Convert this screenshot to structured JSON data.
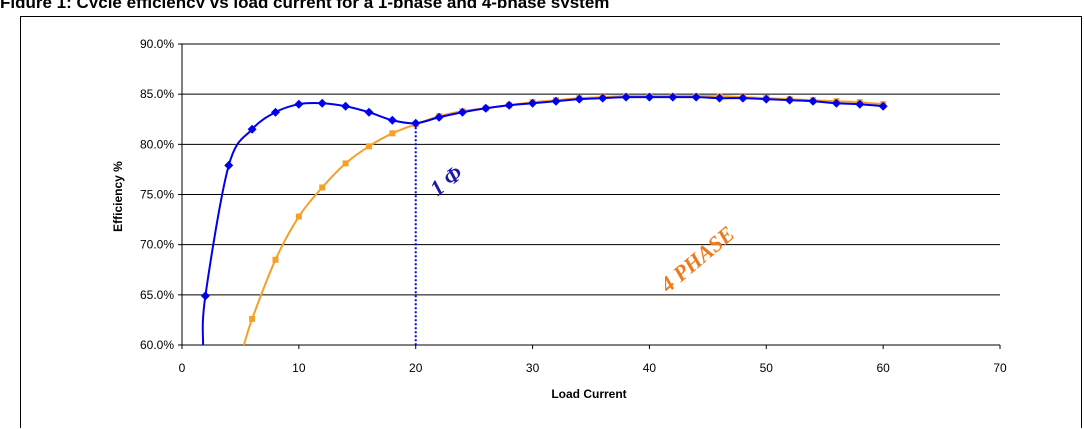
{
  "page": {
    "header": "Figure 1: Cycle efficiency vs load current for a 1-phase and 4-phase system"
  },
  "chart_data": {
    "type": "line",
    "xlabel": "Load Current",
    "ylabel": "Efficiency %",
    "xlim": [
      0,
      70
    ],
    "ylim": [
      0.6,
      0.9
    ],
    "x_ticks": [
      0,
      10,
      20,
      30,
      40,
      50,
      60,
      70
    ],
    "x_tick_labels": [
      "0",
      "10",
      "20",
      "30",
      "40",
      "50",
      "60",
      "70"
    ],
    "y_ticks": [
      0.6,
      0.65,
      0.7,
      0.75,
      0.8,
      0.85,
      0.9
    ],
    "y_tick_labels": [
      "60.0%",
      "65.0%",
      "70.0%",
      "75.0%",
      "80.0%",
      "85.0%",
      "90.0%"
    ],
    "grid": "horizontal",
    "series": [
      {
        "name": "1 Φ",
        "color": "#0000ee",
        "marker": "diamond",
        "x": [
          1.8,
          2,
          4,
          6,
          8,
          10,
          12,
          14,
          16,
          18,
          20,
          22,
          24,
          26,
          28,
          30,
          32,
          34,
          36,
          38,
          40,
          42,
          44,
          46,
          48,
          50,
          52,
          54,
          56,
          58,
          60
        ],
        "y": [
          0.6,
          0.649,
          0.779,
          0.815,
          0.832,
          0.84,
          0.841,
          0.838,
          0.832,
          0.824,
          0.821,
          0.827,
          0.832,
          0.836,
          0.839,
          0.841,
          0.843,
          0.845,
          0.846,
          0.847,
          0.847,
          0.847,
          0.847,
          0.846,
          0.846,
          0.845,
          0.844,
          0.843,
          0.841,
          0.84,
          0.838
        ]
      },
      {
        "name": "4 PHASE",
        "color": "#f5a027",
        "marker": "square",
        "x": [
          5.3,
          6,
          8,
          10,
          12,
          14,
          16,
          18,
          20,
          22,
          24,
          26,
          28,
          30,
          32,
          34,
          36,
          38,
          40,
          42,
          44,
          46,
          48,
          50,
          52,
          54,
          56,
          58,
          60
        ],
        "y": [
          0.6,
          0.626,
          0.685,
          0.728,
          0.757,
          0.781,
          0.798,
          0.811,
          0.82,
          0.828,
          0.833,
          0.836,
          0.839,
          0.842,
          0.844,
          0.846,
          0.847,
          0.848,
          0.848,
          0.848,
          0.848,
          0.848,
          0.847,
          0.846,
          0.845,
          0.844,
          0.843,
          0.842,
          0.84
        ]
      }
    ],
    "vline_x": 20,
    "vline_color": "#0000ee",
    "annotations": [
      {
        "text": "1 Φ",
        "color": "#1a1aaa",
        "x": 23,
        "y": 0.758,
        "angle": -38
      },
      {
        "text": "4 PHASE",
        "color": "#f07a1a",
        "x": 44.5,
        "y": 0.68,
        "angle": -40
      }
    ]
  }
}
